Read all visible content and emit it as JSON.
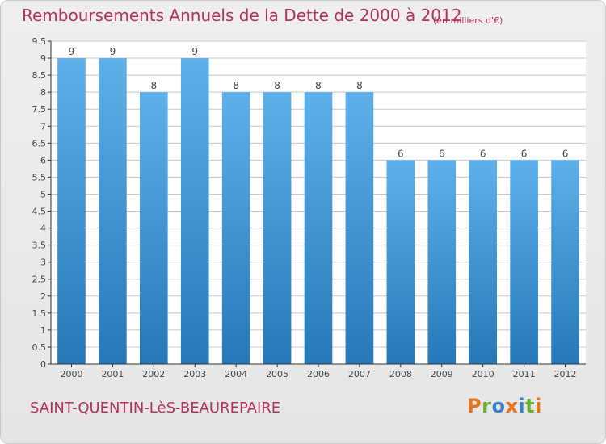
{
  "header": {
    "title": "Remboursements Annuels de la Dette de 2000 à 2012",
    "unit": "(en milliers d'€)"
  },
  "footer": {
    "city": "SAINT-QUENTIN-LèS-BEAUREPAIRE",
    "logo": "Proxiti"
  },
  "colors": {
    "accent": "#b5305e",
    "bar_top": "#5eb0ea",
    "bar_bottom": "#2778b8",
    "axis": "#333333",
    "grid": "#c8c8c8",
    "logo_letters": [
      "#e8731c",
      "#6ab02c",
      "#3b82c6",
      "#e8731c",
      "#3b82c6",
      "#6ab02c",
      "#e8731c"
    ]
  },
  "chart_data": {
    "type": "bar",
    "categories": [
      "2000",
      "2001",
      "2002",
      "2003",
      "2004",
      "2005",
      "2006",
      "2007",
      "2008",
      "2009",
      "2010",
      "2011",
      "2012"
    ],
    "values": [
      9,
      9,
      8,
      9,
      8,
      8,
      8,
      8,
      6,
      6,
      6,
      6,
      6
    ],
    "data_labels": [
      "9",
      "9",
      "8",
      "9",
      "8",
      "8",
      "8",
      "8",
      "6",
      "6",
      "6",
      "6",
      "6"
    ],
    "yticks": [
      0,
      0.5,
      1,
      1.5,
      2,
      2.5,
      3,
      3.5,
      4,
      4.5,
      5,
      5.5,
      6,
      6.5,
      7,
      7.5,
      8,
      8.5,
      9,
      9.5
    ],
    "ytick_labels": [
      "0",
      "0.5",
      "1",
      "1.5",
      "2",
      "2.5",
      "3",
      "3.5",
      "4",
      "4.5",
      "5",
      "5.5",
      "6",
      "6.5",
      "7",
      "7.5",
      "8",
      "8.5",
      "9",
      "9.5"
    ],
    "ylim": [
      0,
      9.5
    ],
    "grid": true,
    "xlabel": "",
    "ylabel": ""
  }
}
